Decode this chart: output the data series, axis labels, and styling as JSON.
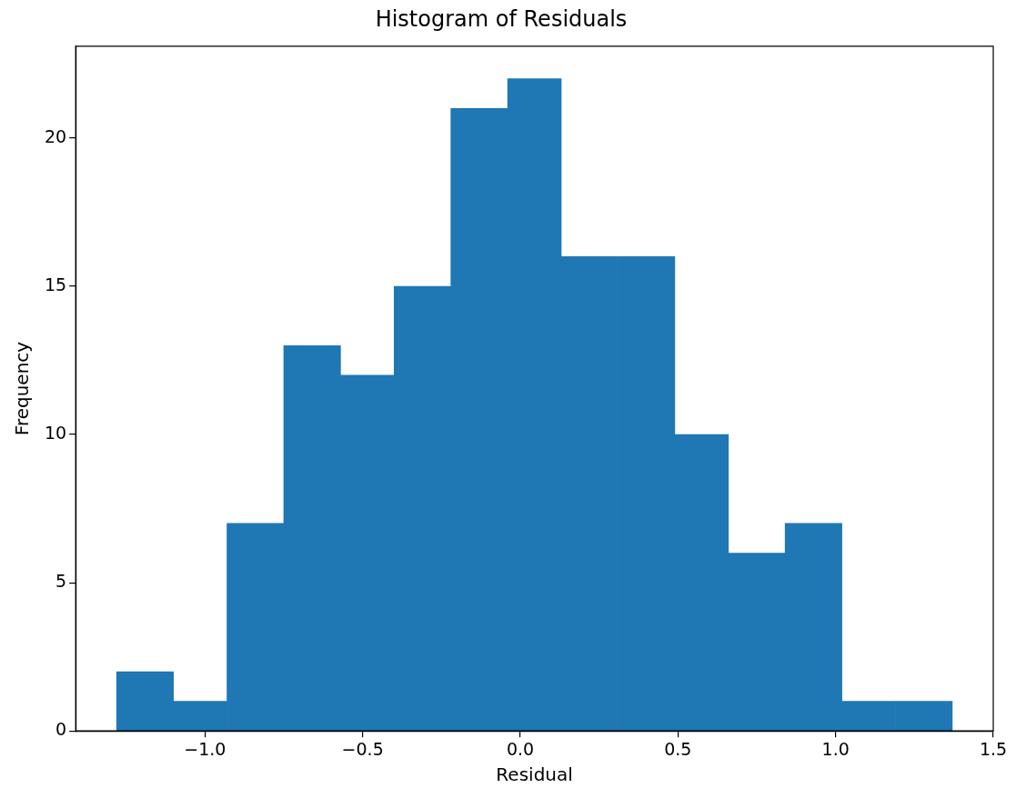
{
  "chart_data": {
    "type": "histogram",
    "title": "Histogram of Residuals",
    "xlabel": "Residual",
    "ylabel": "Frequency",
    "bins": [
      -1.28,
      -1.1,
      -0.93,
      -0.75,
      -0.57,
      -0.4,
      -0.22,
      -0.04,
      0.13,
      0.31,
      0.49,
      0.66,
      0.84,
      1.02,
      1.19,
      1.37
    ],
    "values": [
      2,
      1,
      7,
      13,
      12,
      15,
      21,
      22,
      16,
      16,
      10,
      6,
      7,
      1,
      1
    ],
    "color": "#1f77b4",
    "xlim": [
      -1.41,
      1.5
    ],
    "xticks": [
      {
        "value": -1.0,
        "label": "−1.0"
      },
      {
        "value": -0.5,
        "label": "−0.5"
      },
      {
        "value": 0.0,
        "label": "0.0"
      },
      {
        "value": 0.5,
        "label": "0.5"
      },
      {
        "value": 1.0,
        "label": "1.0"
      },
      {
        "value": 1.5,
        "label": "1.5"
      }
    ],
    "ylim": [
      0,
      23.1
    ],
    "yticks": [
      0,
      5,
      10,
      15,
      20
    ],
    "grid": false,
    "legend": false
  }
}
